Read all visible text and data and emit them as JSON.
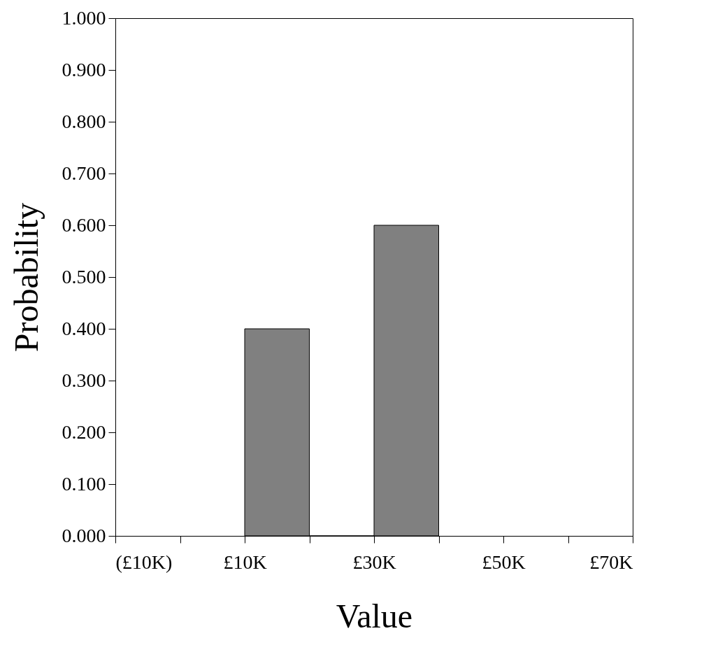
{
  "chart_data": {
    "type": "histogram",
    "xlabel": "Value",
    "ylabel": "Probability",
    "bins": [
      10000,
      20000,
      30000,
      40000
    ],
    "values": [
      0.4,
      0,
      0.6
    ],
    "color": "#808080",
    "xlim": [
      -10000,
      70000
    ],
    "xticks": [
      {
        "value": -10000,
        "label": "(£10K)"
      },
      {
        "value": 0,
        "label": null
      },
      {
        "value": 10000,
        "label": "£10K"
      },
      {
        "value": 20000,
        "label": null
      },
      {
        "value": 30000,
        "label": "£30K"
      },
      {
        "value": 40000,
        "label": null
      },
      {
        "value": 50000,
        "label": "£50K"
      },
      {
        "value": 60000,
        "label": null
      },
      {
        "value": 70000,
        "label": "£70K"
      }
    ],
    "ylim": [
      0,
      1
    ],
    "yticks": [
      {
        "value": 0,
        "label": "0.000"
      },
      {
        "value": 0.1,
        "label": "0.100"
      },
      {
        "value": 0.2,
        "label": "0.200"
      },
      {
        "value": 0.3,
        "label": "0.300"
      },
      {
        "value": 0.4,
        "label": "0.400"
      },
      {
        "value": 0.5,
        "label": "0.500"
      },
      {
        "value": 0.6,
        "label": "0.600"
      },
      {
        "value": 0.7,
        "label": "0.700"
      },
      {
        "value": 0.8,
        "label": "0.800"
      },
      {
        "value": 0.9,
        "label": "0.900"
      },
      {
        "value": 1,
        "label": "1.000"
      }
    ],
    "grid": false
  }
}
